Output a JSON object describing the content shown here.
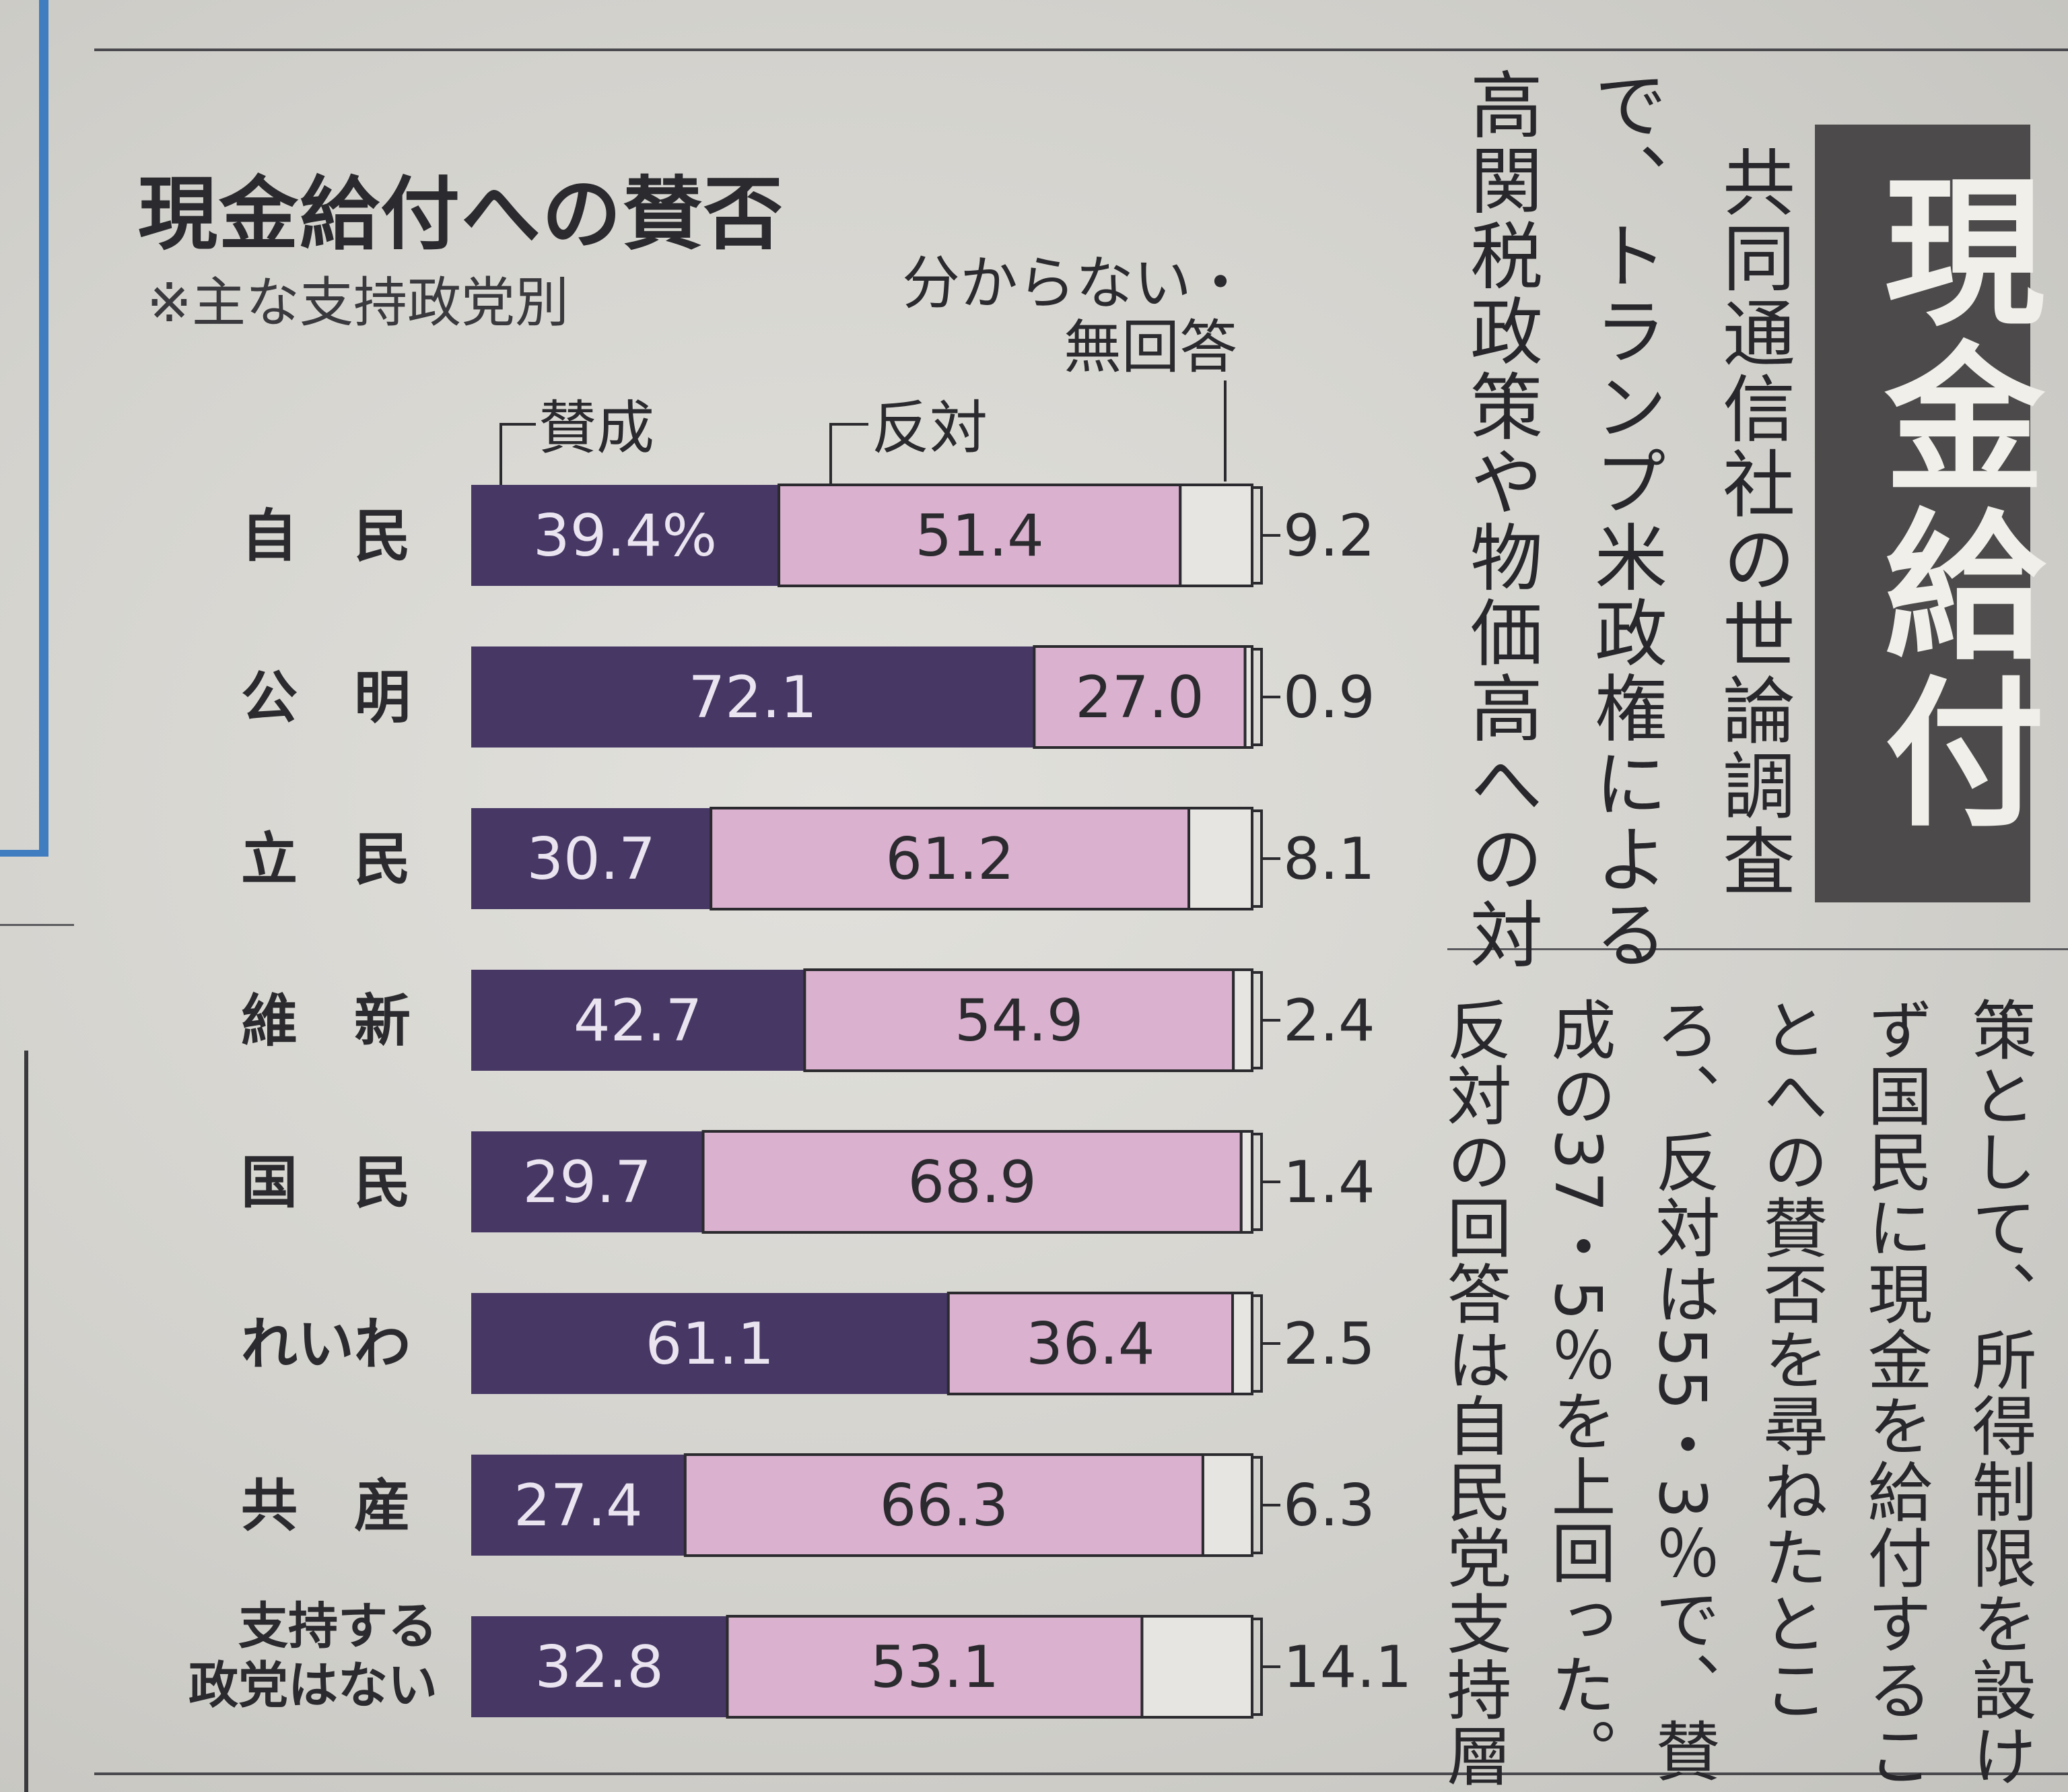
{
  "chart": {
    "title": "現金給付への賛否",
    "note": "※主な支持政党別"
  },
  "legend": {
    "approve": "賛成",
    "oppose": "反対",
    "unknown_line1": "分からない・",
    "unknown_line2": "無回答"
  },
  "colors": {
    "approve": "#463764",
    "oppose": "#dab1cf",
    "unknown": "#e6e5e2"
  },
  "chart_data": {
    "type": "bar",
    "stacked": true,
    "orientation": "horizontal",
    "title": "現金給付への賛否",
    "subtitle": "※主な支持政党別",
    "unit": "%",
    "xlim": [
      0,
      100
    ],
    "categories": [
      "自　民",
      "公　明",
      "立　民",
      "維　新",
      "国　民",
      "れいわ",
      "共　産",
      "支持する政党はない"
    ],
    "category_lines": [
      [
        "自　民"
      ],
      [
        "公　明"
      ],
      [
        "立　民"
      ],
      [
        "維　新"
      ],
      [
        "国　民"
      ],
      [
        "れいわ"
      ],
      [
        "共　産"
      ],
      [
        "支持する",
        "政党はない"
      ]
    ],
    "series": [
      {
        "name": "賛成",
        "values": [
          39.4,
          72.1,
          30.7,
          42.7,
          29.7,
          61.1,
          27.4,
          32.8
        ]
      },
      {
        "name": "反対",
        "values": [
          51.4,
          27.0,
          61.2,
          54.9,
          68.9,
          36.4,
          66.3,
          53.1
        ]
      },
      {
        "name": "分からない・無回答",
        "values": [
          9.2,
          0.9,
          8.1,
          2.4,
          1.4,
          2.5,
          6.3,
          14.1
        ]
      }
    ],
    "labels": {
      "approve": [
        "39.4%",
        "72.1",
        "30.7",
        "42.7",
        "29.7",
        "61.1",
        "27.4",
        "32.8"
      ],
      "oppose": [
        "51.4",
        "27.0",
        "61.2",
        "54.9",
        "68.9",
        "36.4",
        "66.3",
        "53.1"
      ],
      "unknown": [
        "9.2",
        "0.9",
        "8.1",
        "2.4",
        "1.4",
        "2.5",
        "6.3",
        "14.1"
      ]
    }
  },
  "article": {
    "headline": "現金給付",
    "columns_upper": [
      "共同通信社の世論調査",
      "で、トランプ米政権による",
      "高関税政策や物価高への対"
    ],
    "columns_lower": [
      "策として、所得制限を設け",
      "ず国民に現金を給付するこ",
      "とへの賛否を尋ねたとこ",
      "ろ、反対は55・3％で、賛",
      "成の37・5％を上回った。",
      "反対の回答は自民党支持層"
    ]
  }
}
